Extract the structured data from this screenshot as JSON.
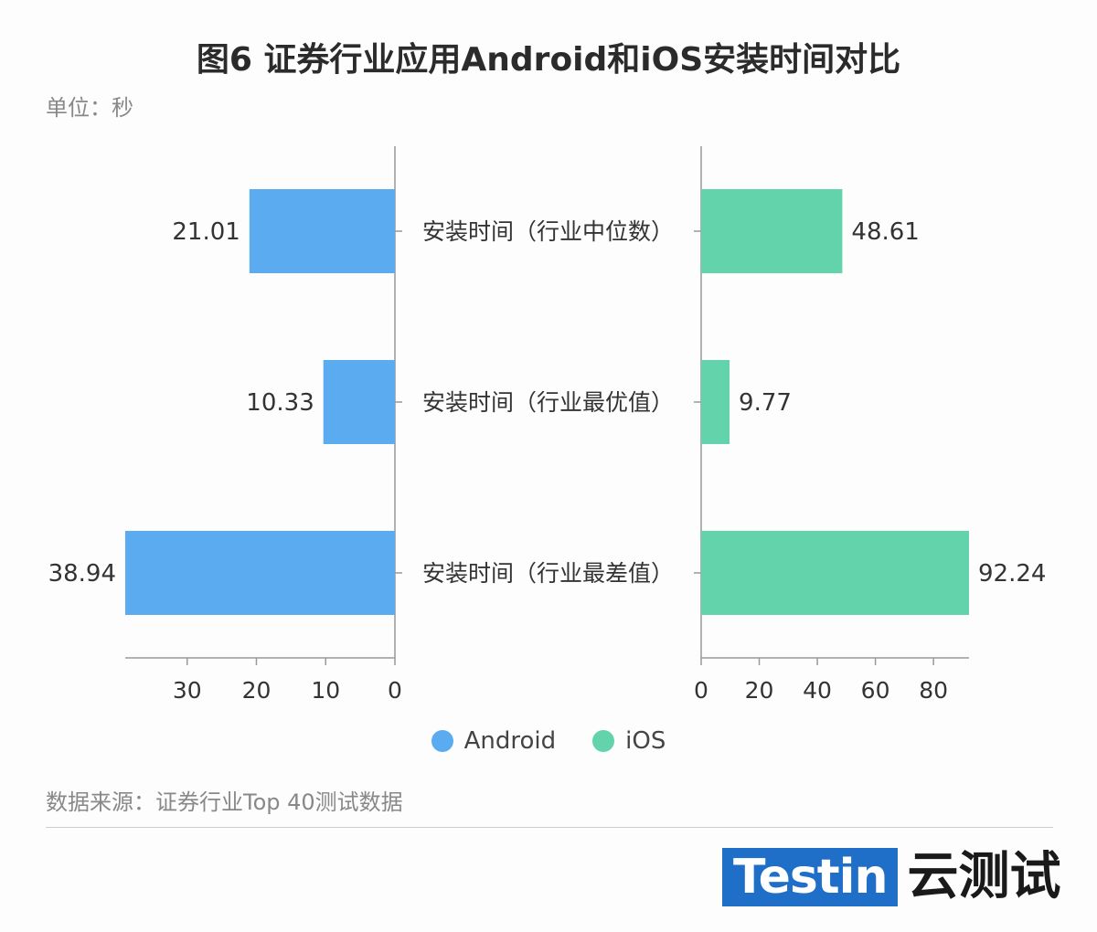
{
  "title": "图6 证券行业应用Android和iOS安装时间对比",
  "unit": "单位：秒",
  "source": "数据来源：证券行业Top 40测试数据",
  "logo": {
    "brand": "Testin",
    "suffix": "云测试"
  },
  "colors": {
    "android": "#5aabf0",
    "ios": "#62d3aa",
    "axis": "#999999",
    "text": "#333333"
  },
  "chart_data": {
    "type": "bar",
    "orientation": "horizontal-butterfly",
    "categories": [
      "安装时间（行业中位数）",
      "安装时间（行业最优值）",
      "安装时间（行业最差值）"
    ],
    "series": [
      {
        "name": "Android",
        "values": [
          21.01,
          10.33,
          38.94
        ],
        "labels": [
          "21.01",
          "10.33",
          "38.94"
        ],
        "xlim": [
          0,
          38.94
        ],
        "ticks": [
          30,
          20,
          10,
          0
        ]
      },
      {
        "name": "iOS",
        "values": [
          48.61,
          9.77,
          92.24
        ],
        "labels": [
          "48.61",
          "9.77",
          "92.24"
        ],
        "xlim": [
          0,
          92.24
        ],
        "ticks": [
          0,
          20,
          40,
          60,
          80
        ]
      }
    ],
    "grid": false,
    "legend": "bottom-center"
  }
}
